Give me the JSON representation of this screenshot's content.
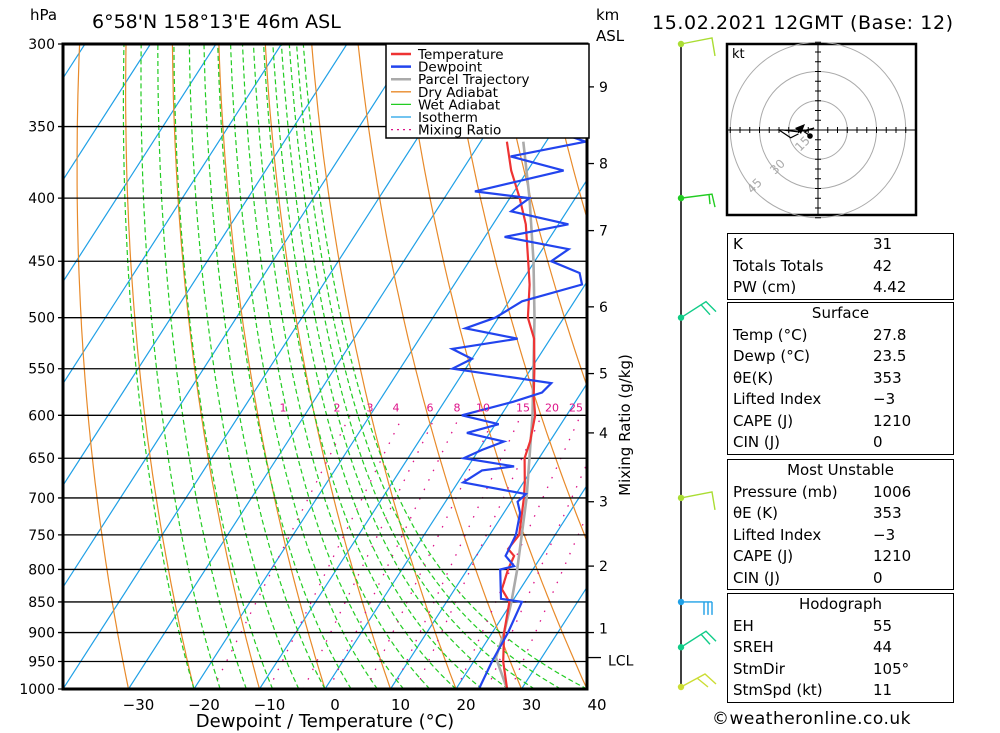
{
  "header": {
    "pressure_unit": "hPa",
    "location": "6°58'N 158°13'E 46m ASL",
    "height_unit_line1": "km",
    "height_unit_line2": "ASL",
    "datetime": "15.02.2021 12GMT (Base: 12)"
  },
  "chart_data": {
    "type": "line",
    "title": "Skew-T log-P sounding 6°58'N 158°13'E 46m ASL",
    "xlabel": "Dewpoint / Temperature (°C)",
    "ylabel": "hPa",
    "right_axis_label": "km ASL",
    "mixing_ratio_axis_label": "Mixing Ratio (g/kg)",
    "xlim": [
      -40,
      40
    ],
    "ylim": [
      1000,
      300
    ],
    "x_ticks": [
      -30,
      -20,
      -10,
      0,
      10,
      20,
      30,
      40
    ],
    "pressure_ticks": [
      300,
      350,
      400,
      450,
      500,
      550,
      600,
      650,
      700,
      750,
      800,
      850,
      900,
      950,
      1000
    ],
    "km_ticks": [
      {
        "km": "1",
        "p": 900
      },
      {
        "km": "2",
        "p": 795
      },
      {
        "km": "3",
        "p": 705
      },
      {
        "km": "4",
        "p": 620
      },
      {
        "km": "5",
        "p": 555
      },
      {
        "km": "6",
        "p": 490
      },
      {
        "km": "7",
        "p": 425
      },
      {
        "km": "8",
        "p": 375
      },
      {
        "km": "9",
        "p": 325
      }
    ],
    "lcl": {
      "label": "LCL",
      "p": 943
    },
    "mixing_ratio_labels": [
      "1",
      "2",
      "3",
      "4",
      "6",
      "8",
      "10",
      "15",
      "20",
      "25"
    ],
    "legend": [
      "Temperature",
      "Dewpoint",
      "Parcel Trajectory",
      "Dry Adiabat",
      "Wet Adiabat",
      "Isotherm",
      "Mixing Ratio"
    ],
    "legend_position": "top-right",
    "colors": {
      "temperature": "#ee3333",
      "dewpoint": "#2244ee",
      "parcel": "#aaaaaa",
      "dry_adiabat": "#e88a2a",
      "wet_adiabat": "#22cc22",
      "isotherm": "#1fa0e6",
      "mixing_ratio": "#dd1188"
    },
    "series": [
      {
        "name": "Temperature",
        "points": [
          [
            1000,
            27.8
          ],
          [
            950,
            24.5
          ],
          [
            900,
            21.8
          ],
          [
            850,
            19.6
          ],
          [
            830,
            17.2
          ],
          [
            800,
            16.2
          ],
          [
            780,
            15.8
          ],
          [
            770,
            14.2
          ],
          [
            750,
            14.5
          ],
          [
            700,
            11.6
          ],
          [
            680,
            10.2
          ],
          [
            650,
            7.8
          ],
          [
            630,
            7.0
          ],
          [
            600,
            5.2
          ],
          [
            580,
            3.2
          ],
          [
            550,
            0.5
          ],
          [
            520,
            -2.5
          ],
          [
            500,
            -5.5
          ],
          [
            470,
            -8.5
          ],
          [
            450,
            -11.0
          ],
          [
            420,
            -15.0
          ],
          [
            400,
            -18.5
          ],
          [
            380,
            -22.5
          ],
          [
            360,
            -26.0
          ]
        ]
      },
      {
        "name": "Dewpoint",
        "points": [
          [
            1000,
            23.5
          ],
          [
            950,
            22.8
          ],
          [
            900,
            22.4
          ],
          [
            850,
            21.5
          ],
          [
            845,
            18.0
          ],
          [
            800,
            15.0
          ],
          [
            795,
            16.8
          ],
          [
            780,
            14.5
          ],
          [
            750,
            14.0
          ],
          [
            720,
            12.5
          ],
          [
            705,
            11.0
          ],
          [
            695,
            11.5
          ],
          [
            680,
            0.8
          ],
          [
            665,
            2.5
          ],
          [
            660,
            7.0
          ],
          [
            650,
            -1.5
          ],
          [
            640,
            0.5
          ],
          [
            630,
            3.0
          ],
          [
            620,
            -3.5
          ],
          [
            610,
            0.5
          ],
          [
            600,
            -6.0
          ],
          [
            585,
            0.5
          ],
          [
            575,
            4.0
          ],
          [
            565,
            4.5
          ],
          [
            550,
            -12.0
          ],
          [
            540,
            -10.0
          ],
          [
            530,
            -14.0
          ],
          [
            520,
            -5.0
          ],
          [
            510,
            -14.0
          ],
          [
            500,
            -10.5
          ],
          [
            485,
            -8.0
          ],
          [
            470,
            -0.5
          ],
          [
            460,
            -2.0
          ],
          [
            450,
            -7.5
          ],
          [
            440,
            -6.0
          ],
          [
            430,
            -17.0
          ],
          [
            420,
            -8.5
          ],
          [
            410,
            -18.5
          ],
          [
            400,
            -17.0
          ],
          [
            395,
            -26.0
          ],
          [
            380,
            -14.5
          ],
          [
            370,
            -24.0
          ],
          [
            360,
            -14.0
          ],
          [
            355,
            -18.0
          ],
          [
            350,
            -10.5
          ],
          [
            345,
            -16.0
          ],
          [
            335,
            -9.5
          ],
          [
            320,
            -12.5
          ],
          [
            310,
            -7.0
          ],
          [
            300,
            -11.0
          ]
        ]
      },
      {
        "name": "Parcel Trajectory",
        "points": [
          [
            1000,
            27.8
          ],
          [
            943,
            23.0
          ],
          [
            900,
            21.8
          ],
          [
            850,
            19.9
          ],
          [
            800,
            17.6
          ],
          [
            700,
            12.0
          ],
          [
            600,
            4.8
          ],
          [
            500,
            -4.5
          ],
          [
            450,
            -10.2
          ],
          [
            400,
            -17.0
          ],
          [
            360,
            -23.5
          ]
        ]
      }
    ],
    "wind_barbs": [
      {
        "p": 300,
        "color": "#aadd33"
      },
      {
        "p": 400,
        "color": "#22cc22"
      },
      {
        "p": 500,
        "color": "#11cc88"
      },
      {
        "p": 700,
        "color": "#aadd33"
      },
      {
        "p": 850,
        "color": "#1fa0e6"
      },
      {
        "p": 925,
        "color": "#11cc88"
      },
      {
        "p": 1000,
        "color": "#ccdd33"
      }
    ],
    "hodograph": {
      "unit_label": "kt",
      "ring_labels": [
        "15",
        "30",
        "45"
      ],
      "points_kt": [
        [
          -4,
          -3
        ],
        [
          -7,
          -1
        ],
        [
          -2,
          1
        ],
        [
          -10,
          -1
        ],
        [
          -18,
          0
        ],
        [
          -20,
          0
        ],
        [
          -14,
          -4
        ],
        [
          -10,
          -2
        ]
      ]
    }
  },
  "indices": {
    "rows": [
      {
        "label": "K",
        "value": "31"
      },
      {
        "label": "Totals Totals",
        "value": "42"
      },
      {
        "label": "PW (cm)",
        "value": "4.42"
      }
    ]
  },
  "surface": {
    "title": "Surface",
    "rows": [
      {
        "label": "Temp (°C)",
        "value": "27.8"
      },
      {
        "label": "Dewp (°C)",
        "value": "23.5"
      },
      {
        "label": "θE(K)",
        "value": "353"
      },
      {
        "label": "Lifted Index",
        "value": "−3"
      },
      {
        "label": "CAPE (J)",
        "value": "1210"
      },
      {
        "label": "CIN (J)",
        "value": "0"
      }
    ]
  },
  "most_unstable": {
    "title": "Most Unstable",
    "rows": [
      {
        "label": "Pressure (mb)",
        "value": "1006"
      },
      {
        "label": "θE (K)",
        "value": "353"
      },
      {
        "label": "Lifted Index",
        "value": "−3"
      },
      {
        "label": "CAPE (J)",
        "value": "1210"
      },
      {
        "label": "CIN (J)",
        "value": "0"
      }
    ]
  },
  "hodograph_panel": {
    "title": "Hodograph",
    "rows": [
      {
        "label": "EH",
        "value": "55"
      },
      {
        "label": "SREH",
        "value": "44"
      },
      {
        "label": "StmDir",
        "value": "105°"
      },
      {
        "label": "StmSpd (kt)",
        "value": "11"
      }
    ]
  },
  "footer": {
    "copyright": "©weatheronline.co.uk"
  }
}
